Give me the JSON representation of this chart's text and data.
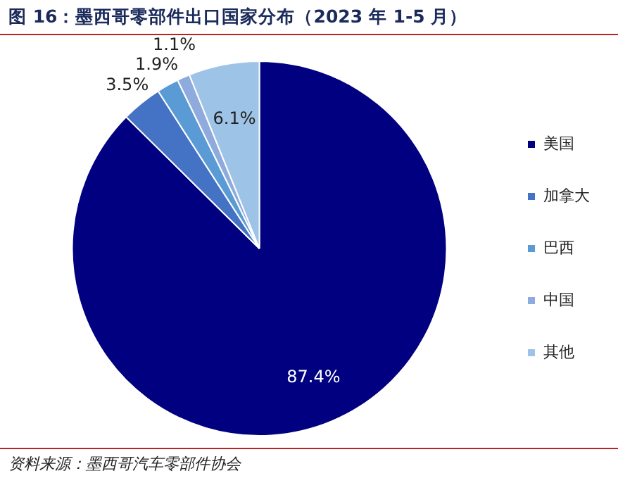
{
  "chart_data": {
    "type": "pie",
    "title": "图 16：墨西哥零部件出口国家分布（2023 年 1-5 月）",
    "categories": [
      "美国",
      "加拿大",
      "巴西",
      "中国",
      "其他"
    ],
    "values": [
      87.4,
      3.5,
      1.9,
      1.1,
      6.1
    ],
    "colors": [
      "#000080",
      "#4472c4",
      "#5b9bd5",
      "#8faadc",
      "#9dc3e6"
    ],
    "value_labels": [
      "87.4%",
      "3.5%",
      "1.9%",
      "1.1%",
      "6.1%"
    ],
    "legend": "right",
    "annotations": [
      "资料来源：墨西哥汽车零部件协会"
    ]
  }
}
